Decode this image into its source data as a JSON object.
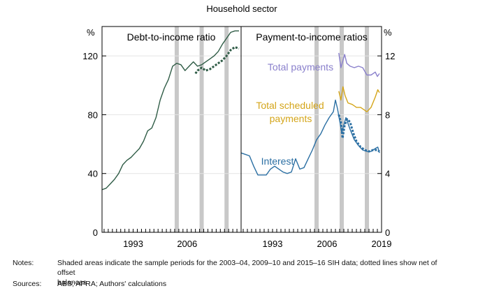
{
  "chart_data": {
    "title": "Household sector",
    "type": "line",
    "panels": [
      {
        "title": "Debt-to-income ratio",
        "y_unit": "%",
        "ylim": [
          0,
          140
        ],
        "yticks": [
          "0",
          "40",
          "80",
          "120"
        ],
        "xlim": [
          1986,
          2019.5
        ],
        "xticks": [
          "1993",
          "2006"
        ],
        "shaded_periods": [
          [
            2003.5,
            2004.5
          ],
          [
            2009.5,
            2010.5
          ],
          [
            2015.5,
            2016.5
          ]
        ],
        "series": [
          {
            "style": "solid",
            "color": "#2f5c46",
            "x": [
              1986,
              1987,
              1988,
              1989,
              1990,
              1991,
              1992,
              1993,
              1994,
              1995,
              1996,
              1997,
              1998,
              1999,
              2000,
              2001,
              2002,
              2003,
              2004,
              2005,
              2006,
              2007,
              2008,
              2009,
              2010,
              2011,
              2012,
              2013,
              2014,
              2015,
              2016,
              2017,
              2018,
              2019
            ],
            "y": [
              29,
              30,
              33,
              36,
              40,
              46,
              49,
              51,
              54,
              57,
              62,
              69,
              71,
              78,
              90,
              98,
              104,
              113,
              115,
              114,
              110,
              113,
              116,
              113,
              114,
              116,
              118,
              120,
              123,
              128,
              132,
              136,
              137,
              137
            ]
          },
          {
            "name": "net of offset balances",
            "style": "dotted",
            "color": "#2f5c46",
            "x": [
              2008.5,
              2009,
              2010,
              2011,
              2012,
              2013,
              2014,
              2015,
              2016,
              2017,
              2018,
              2019
            ],
            "y": [
              108,
              110,
              112,
              110,
              111,
              113,
              115,
              117,
              120,
              124,
              126,
              125
            ]
          }
        ]
      },
      {
        "title": "Payment-to-income ratios",
        "y_unit": "%",
        "ylim": [
          0,
          14
        ],
        "yticks": [
          "0",
          "4",
          "8",
          "12"
        ],
        "xlim": [
          1986,
          2019.5
        ],
        "xticks": [
          "1993",
          "2006",
          "2019"
        ],
        "shaded_periods": [
          [
            2003.5,
            2004.5
          ],
          [
            2009.5,
            2010.5
          ],
          [
            2015.5,
            2016.5
          ]
        ],
        "series": [
          {
            "name": "Total payments",
            "style": "solid",
            "color": "#8a80cc",
            "x": [
              2009.3,
              2009.8,
              2010.2,
              2010.7,
              2011.2,
              2012,
              2013,
              2014,
              2015,
              2016,
              2017,
              2018,
              2018.5,
              2019
            ],
            "y": [
              12.2,
              11.2,
              11.6,
              12.1,
              11.5,
              11.3,
              11.2,
              11.3,
              11.2,
              10.7,
              10.7,
              10.9,
              10.6,
              10.8
            ]
          },
          {
            "name": "Total scheduled payments",
            "style": "solid",
            "color": "#d4a519",
            "x": [
              2009.3,
              2009.8,
              2010.3,
              2010.8,
              2011.5,
              2012.5,
              2013.5,
              2014.5,
              2015.5,
              2016,
              2017,
              2018,
              2018.6,
              2019
            ],
            "y": [
              9.6,
              9.0,
              9.9,
              9.3,
              8.8,
              8.7,
              8.5,
              8.5,
              8.3,
              8.2,
              8.5,
              9.2,
              9.7,
              9.5
            ]
          },
          {
            "name": "Interest",
            "style": "solid",
            "color": "#2b6fa3",
            "x": [
              1986,
              1987,
              1988,
              1989,
              1990,
              1991,
              1992,
              1993,
              1994,
              1995,
              1996,
              1997,
              1998,
              1999,
              2000,
              2001,
              2002,
              2003,
              2004,
              2005,
              2006,
              2007,
              2008,
              2008.5,
              2009,
              2010,
              2011,
              2012,
              2013,
              2014,
              2015,
              2016,
              2017,
              2018,
              2018.6,
              2019
            ],
            "y": [
              5.4,
              5.3,
              5.2,
              4.5,
              3.9,
              3.9,
              3.9,
              4.3,
              4.5,
              4.3,
              4.1,
              4.0,
              4.1,
              5.0,
              4.3,
              4.4,
              5.0,
              5.6,
              6.3,
              6.7,
              7.3,
              7.8,
              8.2,
              9.0,
              8.4,
              6.8,
              7.8,
              7.0,
              6.3,
              5.9,
              5.6,
              5.5,
              5.5,
              5.7,
              5.8,
              5.4
            ]
          },
          {
            "name": "net of offset balances",
            "style": "dotted",
            "color": "#2b6fa3",
            "x": [
              2009.3,
              2009.8,
              2010.2,
              2010.7,
              2011.3,
              2012,
              2012.7,
              2013.5,
              2014.5,
              2015.5,
              2016.5,
              2017.5,
              2018.5,
              2019
            ],
            "y": [
              8.0,
              7.5,
              6.4,
              7.3,
              7.7,
              7.5,
              6.8,
              6.2,
              5.8,
              5.6,
              5.5,
              5.6,
              5.6,
              5.5
            ]
          }
        ]
      }
    ],
    "annotations": [
      {
        "text": "Total payments",
        "color": "#8a80cc"
      },
      {
        "text": "Total scheduled",
        "color": "#d4a519"
      },
      {
        "text": "payments",
        "color": "#d4a519"
      },
      {
        "text": "Interest",
        "color": "#2b6fa3"
      }
    ]
  },
  "notes": {
    "notes_label": "Notes:",
    "notes_line1": "Shaded areas indicate the sample periods for the 2003–04, 2009–10 and 2015–16 SIH data; dotted lines show net of offset",
    "notes_line2": "balances",
    "sources_label": "Sources:",
    "sources_text": "ABS; APRA; Authors' calculations"
  }
}
